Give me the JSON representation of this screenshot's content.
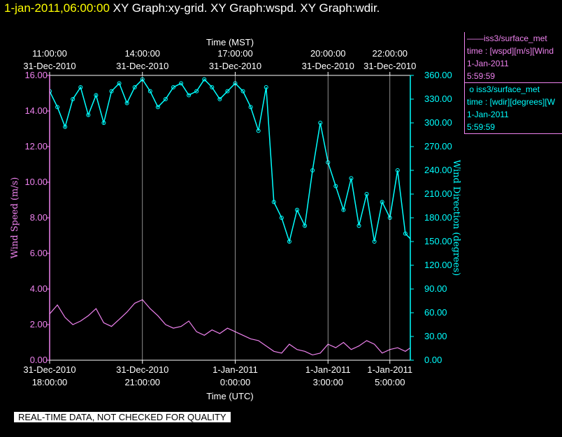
{
  "header": {
    "date_label": "1-jan-2011,06:00:00",
    "graphs_label": "XY Graph:xy-grid.  XY Graph:wspd.  XY Graph:wdir."
  },
  "colors": {
    "wspd": "#ee82ee",
    "wdir": "#00ffff",
    "grid": "#ffffff",
    "background": "#000000"
  },
  "legend": {
    "wspd": {
      "line1": "iss3/surface_met",
      "line2": "time : [wspd][m/s][Wind",
      "line3": "1-Jan-2011",
      "line4": "5:59:59"
    },
    "wdir": {
      "line1": "iss3/surface_met",
      "line2": "time : [wdir][degrees][W",
      "line3": "1-Jan-2011",
      "line4": "5:59:59"
    }
  },
  "footer": {
    "qc_note": "REAL-TIME DATA, NOT CHECKED FOR QUALITY"
  },
  "chart_data": {
    "type": "line",
    "x_axis_bottom": {
      "label": "Time (UTC)",
      "ticks": [
        {
          "hours": 0,
          "line1": "31-Dec-2010",
          "line2": "18:00:00"
        },
        {
          "hours": 3,
          "line1": "31-Dec-2010",
          "line2": "21:00:00"
        },
        {
          "hours": 6,
          "line1": "1-Jan-2011",
          "line2": "0:00:00"
        },
        {
          "hours": 9,
          "line1": "1-Jan-2011",
          "line2": "3:00:00"
        },
        {
          "hours": 11,
          "line1": "1-Jan-2011",
          "line2": "5:00:00"
        }
      ]
    },
    "x_axis_top": {
      "label": "Time (MST)",
      "ticks": [
        {
          "hours": 0,
          "line1": "11:00:00",
          "line2": "31-Dec-2010"
        },
        {
          "hours": 3,
          "line1": "14:00:00",
          "line2": "31-Dec-2010"
        },
        {
          "hours": 6,
          "line1": "17:00:00",
          "line2": "31-Dec-2010"
        },
        {
          "hours": 9,
          "line1": "20:00:00",
          "line2": "31-Dec-2010"
        },
        {
          "hours": 11,
          "line1": "22:00:00",
          "line2": "31-Dec-2010"
        }
      ]
    },
    "x_range_hours": [
      0,
      12
    ],
    "grid": true,
    "y_left": {
      "label": "Wind Speed (m/s)",
      "range": [
        0,
        16
      ],
      "ticks": [
        "0.00",
        "2.00",
        "4.00",
        "6.00",
        "8.00",
        "10.00",
        "12.00",
        "14.00",
        "16.00"
      ]
    },
    "y_right": {
      "label": "Wind Direction (degrees)",
      "range": [
        0,
        360
      ],
      "ticks": [
        "0.00",
        "30.00",
        "60.00",
        "90.00",
        "120.00",
        "150.00",
        "180.00",
        "210.00",
        "240.00",
        "270.00",
        "300.00",
        "330.00",
        "360.00"
      ]
    },
    "series": [
      {
        "name": "iss3/surface_met wspd",
        "axis": "left",
        "points": [
          [
            0.0,
            2.6
          ],
          [
            0.25,
            3.1
          ],
          [
            0.5,
            2.4
          ],
          [
            0.75,
            2.0
          ],
          [
            1.0,
            2.2
          ],
          [
            1.25,
            2.5
          ],
          [
            1.5,
            2.9
          ],
          [
            1.75,
            2.1
          ],
          [
            2.0,
            1.9
          ],
          [
            2.25,
            2.3
          ],
          [
            2.5,
            2.7
          ],
          [
            2.75,
            3.2
          ],
          [
            3.0,
            3.4
          ],
          [
            3.25,
            2.9
          ],
          [
            3.5,
            2.5
          ],
          [
            3.75,
            2.0
          ],
          [
            4.0,
            1.8
          ],
          [
            4.25,
            1.9
          ],
          [
            4.5,
            2.2
          ],
          [
            4.75,
            1.6
          ],
          [
            5.0,
            1.4
          ],
          [
            5.25,
            1.7
          ],
          [
            5.5,
            1.5
          ],
          [
            5.75,
            1.8
          ],
          [
            6.0,
            1.6
          ],
          [
            6.25,
            1.4
          ],
          [
            6.5,
            1.2
          ],
          [
            6.75,
            1.1
          ],
          [
            7.0,
            0.8
          ],
          [
            7.25,
            0.5
          ],
          [
            7.5,
            0.4
          ],
          [
            7.75,
            0.9
          ],
          [
            8.0,
            0.6
          ],
          [
            8.25,
            0.5
          ],
          [
            8.5,
            0.3
          ],
          [
            8.75,
            0.4
          ],
          [
            9.0,
            0.9
          ],
          [
            9.25,
            0.7
          ],
          [
            9.5,
            1.0
          ],
          [
            9.75,
            0.6
          ],
          [
            10.0,
            0.8
          ],
          [
            10.25,
            1.1
          ],
          [
            10.5,
            0.9
          ],
          [
            10.75,
            0.4
          ],
          [
            11.0,
            0.6
          ],
          [
            11.25,
            0.7
          ],
          [
            11.5,
            0.5
          ],
          [
            11.75,
            0.8
          ],
          [
            12.0,
            0.6
          ]
        ]
      },
      {
        "name": "iss3/surface_met wdir",
        "axis": "right",
        "points": [
          [
            0.0,
            340
          ],
          [
            0.25,
            320
          ],
          [
            0.5,
            295
          ],
          [
            0.75,
            330
          ],
          [
            1.0,
            345
          ],
          [
            1.25,
            310
          ],
          [
            1.5,
            335
          ],
          [
            1.75,
            300
          ],
          [
            2.0,
            340
          ],
          [
            2.25,
            350
          ],
          [
            2.5,
            325
          ],
          [
            2.75,
            345
          ],
          [
            3.0,
            355
          ],
          [
            3.25,
            340
          ],
          [
            3.5,
            320
          ],
          [
            3.75,
            330
          ],
          [
            4.0,
            345
          ],
          [
            4.25,
            350
          ],
          [
            4.5,
            335
          ],
          [
            4.75,
            340
          ],
          [
            5.0,
            355
          ],
          [
            5.25,
            345
          ],
          [
            5.5,
            330
          ],
          [
            5.75,
            340
          ],
          [
            6.0,
            350
          ],
          [
            6.25,
            340
          ],
          [
            6.5,
            320
          ],
          [
            6.75,
            290
          ],
          [
            7.0,
            345
          ],
          [
            7.25,
            200
          ],
          [
            7.5,
            180
          ],
          [
            7.75,
            150
          ],
          [
            8.0,
            190
          ],
          [
            8.25,
            170
          ],
          [
            8.5,
            240
          ],
          [
            8.75,
            300
          ],
          [
            9.0,
            250
          ],
          [
            9.25,
            220
          ],
          [
            9.5,
            190
          ],
          [
            9.75,
            230
          ],
          [
            10.0,
            170
          ],
          [
            10.25,
            210
          ],
          [
            10.5,
            150
          ],
          [
            10.75,
            200
          ],
          [
            11.0,
            180
          ],
          [
            11.25,
            240
          ],
          [
            11.5,
            160
          ],
          [
            11.75,
            150
          ],
          [
            12.0,
            145
          ]
        ]
      }
    ]
  }
}
